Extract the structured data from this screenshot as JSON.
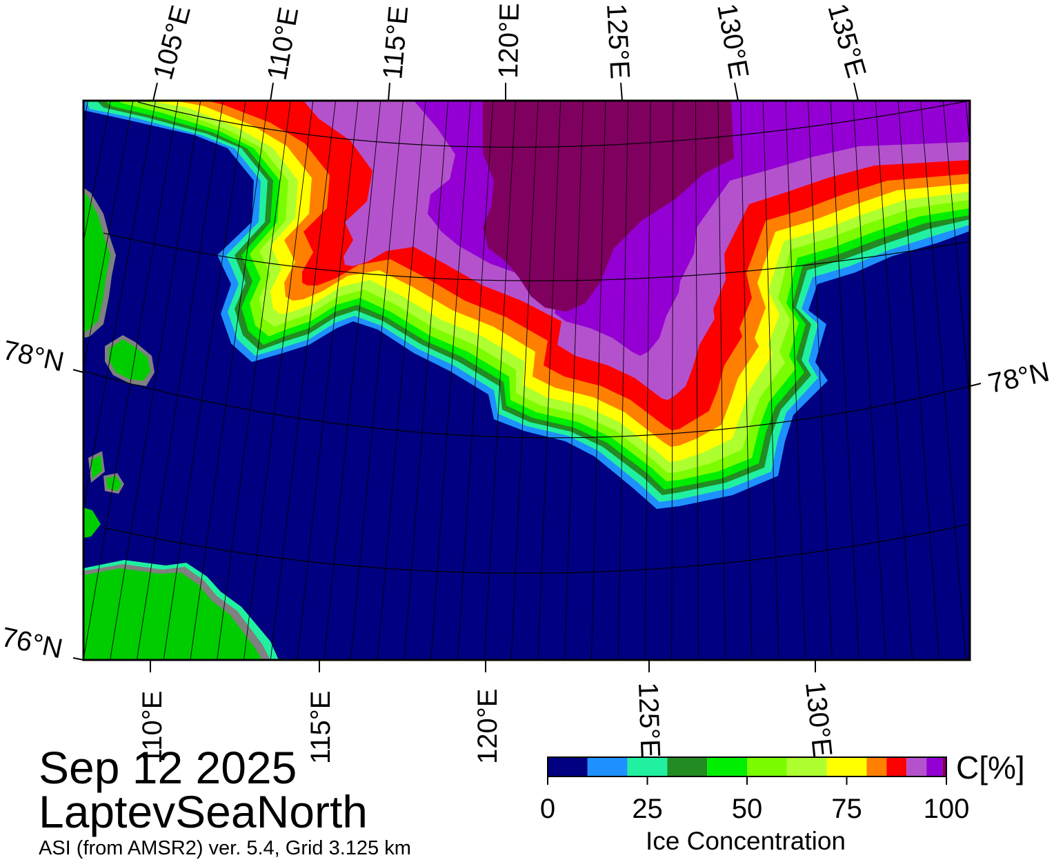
{
  "map": {
    "date": "Sep 12 2025",
    "region": "LaptevSeaNorth",
    "product": "ASI (from AMSR2) ver. 5.4,  Grid 3.125 km",
    "top_lon_labels": [
      "105°E",
      "110°E",
      "115°E",
      "120°E",
      "125°E",
      "130°E",
      "135°E"
    ],
    "bottom_lon_labels": [
      "110°E",
      "115°E",
      "120°E",
      "125°E",
      "130°E"
    ],
    "lat_labels": [
      {
        "text": "78°N",
        "side": "left"
      },
      {
        "text": "78°N",
        "side": "right"
      },
      {
        "text": "76°N",
        "side": "left"
      }
    ],
    "colors": {
      "ocean": "#000080",
      "land": "#00cd00",
      "coast_grey": "#808080"
    }
  },
  "colorbar": {
    "title": "Ice Concentration",
    "unit": "C[%]",
    "ticks": [
      "0",
      "25",
      "50",
      "75",
      "100"
    ],
    "tick_values": [
      0,
      25,
      50,
      75,
      100
    ],
    "range": [
      0,
      100
    ],
    "bins": [
      {
        "from": 0,
        "to": 10,
        "color": "#000080"
      },
      {
        "from": 10,
        "to": 20,
        "color": "#1e90ff"
      },
      {
        "from": 20,
        "to": 30,
        "color": "#20f0a0"
      },
      {
        "from": 30,
        "to": 40,
        "color": "#228b22"
      },
      {
        "from": 40,
        "to": 50,
        "color": "#00ee00"
      },
      {
        "from": 50,
        "to": 60,
        "color": "#7cfc00"
      },
      {
        "from": 60,
        "to": 70,
        "color": "#adff2f"
      },
      {
        "from": 70,
        "to": 80,
        "color": "#ffff00"
      },
      {
        "from": 80,
        "to": 85,
        "color": "#ff7f00"
      },
      {
        "from": 85,
        "to": 90,
        "color": "#ff0000"
      },
      {
        "from": 90,
        "to": 95,
        "color": "#b452cd"
      },
      {
        "from": 95,
        "to": 99,
        "color": "#9400d3"
      },
      {
        "from": 99,
        "to": 100,
        "color": "#800060"
      }
    ]
  }
}
